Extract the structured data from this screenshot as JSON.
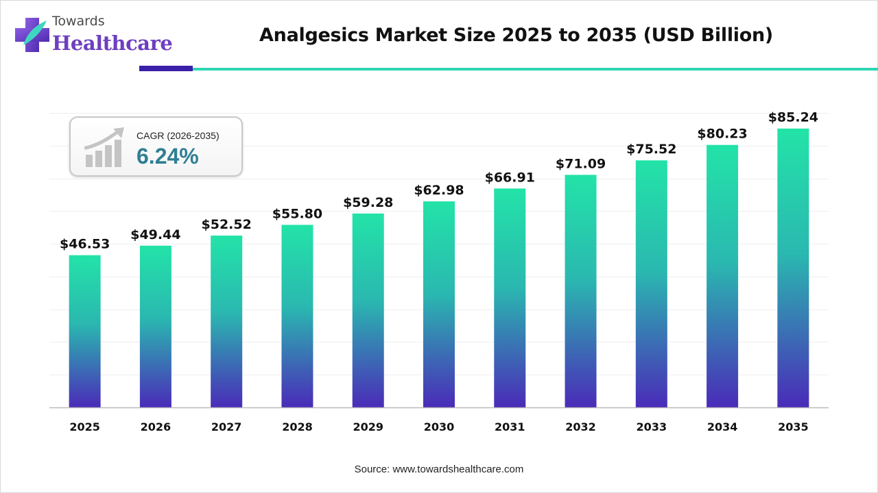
{
  "logo": {
    "line1": "Towards",
    "line2": "Healthcare"
  },
  "header": {
    "title": "Analgesics Market Size 2025 to 2035 (USD Billion)"
  },
  "cagr": {
    "label": "CAGR (2026-2035)",
    "value": "6.24%"
  },
  "source": "Source: www.towardshealthcare.com",
  "colors": {
    "bar_top": "#23e3a8",
    "bar_bottom": "#4a2bb8",
    "accent_purple": "#3a20a8",
    "accent_teal": "#30d5b4",
    "gridline": "#eeeeee",
    "axis": "#bbbbbb"
  },
  "chart_data": {
    "type": "bar",
    "title": "Analgesics Market Size 2025 to 2035 (USD Billion)",
    "xlabel": "",
    "ylabel": "",
    "categories": [
      "2025",
      "2026",
      "2027",
      "2028",
      "2029",
      "2030",
      "2031",
      "2032",
      "2033",
      "2034",
      "2035"
    ],
    "values": [
      46.53,
      49.44,
      52.52,
      55.8,
      59.28,
      62.98,
      66.91,
      71.09,
      75.52,
      80.23,
      85.24
    ],
    "value_labels": [
      "$46.53",
      "$49.44",
      "$52.52",
      "$55.80",
      "$59.28",
      "$62.98",
      "$66.91",
      "$71.09",
      "$75.52",
      "$80.23",
      "$85.24"
    ],
    "ylim": [
      0,
      90
    ],
    "grid": true,
    "legend": "none"
  }
}
